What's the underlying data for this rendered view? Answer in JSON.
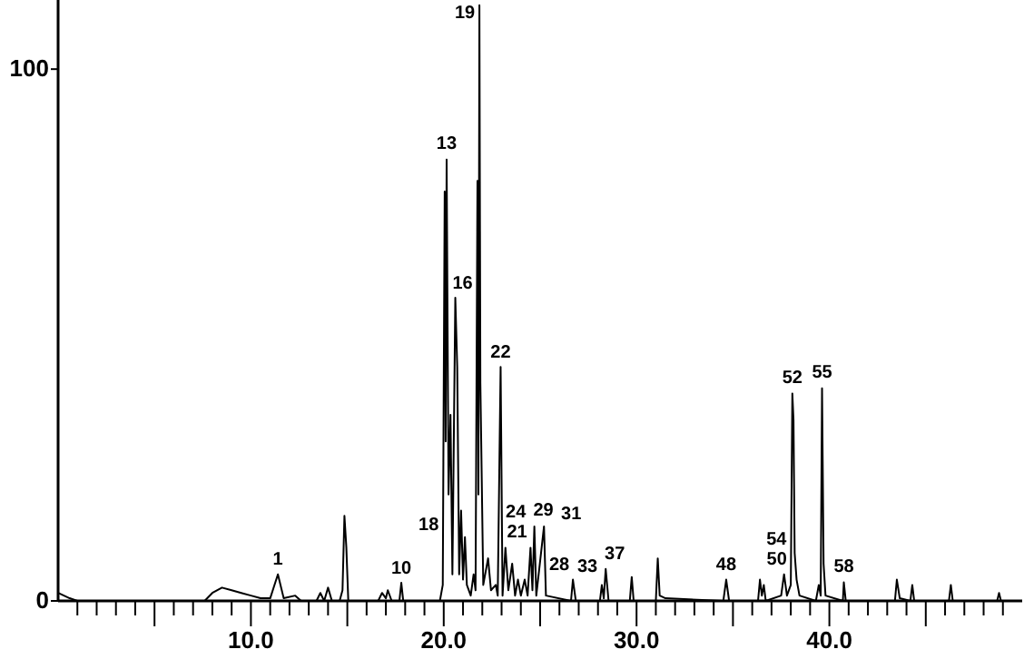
{
  "chart_data": {
    "type": "line",
    "xlim": [
      0,
      50
    ],
    "ylim": [
      0,
      113
    ],
    "xticks": [
      {
        "value": 1,
        "label": null
      },
      {
        "value": 2,
        "label": null
      },
      {
        "value": 3,
        "label": null
      },
      {
        "value": 4,
        "label": null
      },
      {
        "value": 5,
        "label": null
      },
      {
        "value": 6,
        "label": null
      },
      {
        "value": 7,
        "label": null
      },
      {
        "value": 8,
        "label": null
      },
      {
        "value": 9,
        "label": null
      },
      {
        "value": 10,
        "label": "10.0"
      },
      {
        "value": 11,
        "label": null
      },
      {
        "value": 12,
        "label": null
      },
      {
        "value": 13,
        "label": null
      },
      {
        "value": 14,
        "label": null
      },
      {
        "value": 15,
        "label": null
      },
      {
        "value": 16,
        "label": null
      },
      {
        "value": 17,
        "label": null
      },
      {
        "value": 18,
        "label": null
      },
      {
        "value": 19,
        "label": null
      },
      {
        "value": 20,
        "label": "20.0"
      },
      {
        "value": 21,
        "label": null
      },
      {
        "value": 22,
        "label": null
      },
      {
        "value": 23,
        "label": null
      },
      {
        "value": 24,
        "label": null
      },
      {
        "value": 25,
        "label": null
      },
      {
        "value": 26,
        "label": null
      },
      {
        "value": 27,
        "label": null
      },
      {
        "value": 28,
        "label": null
      },
      {
        "value": 29,
        "label": null
      },
      {
        "value": 30,
        "label": "30.0"
      },
      {
        "value": 31,
        "label": null
      },
      {
        "value": 32,
        "label": null
      },
      {
        "value": 33,
        "label": null
      },
      {
        "value": 34,
        "label": null
      },
      {
        "value": 35,
        "label": null
      },
      {
        "value": 36,
        "label": null
      },
      {
        "value": 37,
        "label": null
      },
      {
        "value": 38,
        "label": null
      },
      {
        "value": 39,
        "label": null
      },
      {
        "value": 40,
        "label": "40.0"
      },
      {
        "value": 41,
        "label": null
      },
      {
        "value": 42,
        "label": null
      },
      {
        "value": 43,
        "label": null
      },
      {
        "value": 44,
        "label": null
      },
      {
        "value": 45,
        "label": null
      },
      {
        "value": 46,
        "label": null
      },
      {
        "value": 47,
        "label": null
      },
      {
        "value": 48,
        "label": null
      },
      {
        "value": 49,
        "label": null
      }
    ],
    "yticks": [
      0,
      100
    ],
    "series": [
      {
        "color": "#000000",
        "x": [
          0,
          0.3,
          0.6,
          1,
          7.6,
          8,
          8.5,
          9,
          9.5,
          10,
          10.5,
          11,
          11.4,
          11.7,
          12.3,
          12.6,
          13.4,
          13.6,
          13.8,
          14.0,
          14.2,
          14.6,
          14.75,
          14.85,
          14.95,
          15.05,
          16.6,
          16.8,
          17.0,
          17.1,
          17.3,
          17.7,
          17.8,
          17.9,
          19.8,
          19.95,
          20.05,
          20.1,
          20.15,
          20.25,
          20.35,
          20.45,
          20.6,
          20.7,
          20.8,
          20.9,
          21.0,
          21.1,
          21.2,
          21.4,
          21.55,
          21.65,
          21.75,
          21.8,
          21.85,
          21.9,
          22.05,
          22.3,
          22.45,
          22.7,
          22.8,
          22.95,
          23.05,
          23.2,
          23.35,
          23.55,
          23.7,
          23.85,
          24.0,
          24.2,
          24.35,
          24.5,
          24.6,
          24.7,
          24.8,
          25.2,
          25.3,
          26.6,
          26.7,
          26.85,
          28.1,
          28.2,
          28.3,
          28.4,
          28.55,
          29.65,
          29.75,
          29.85,
          31.0,
          31.1,
          31.2,
          31.5,
          34.5,
          34.65,
          34.8,
          36.3,
          36.4,
          36.5,
          36.6,
          36.7,
          37.5,
          37.65,
          37.8,
          38.0,
          38.08,
          38.14,
          38.2,
          38.3,
          38.45,
          39.3,
          39.45,
          39.55,
          39.62,
          39.7,
          39.8,
          40.7,
          40.75,
          40.85,
          43.4,
          43.5,
          43.65,
          44.2,
          44.3,
          44.4,
          46.2,
          46.3,
          46.4,
          48.7,
          48.8,
          48.9,
          49.8
        ],
        "values": [
          1.5,
          1,
          0.5,
          0,
          0,
          1.5,
          2.5,
          2,
          1.5,
          1,
          0.5,
          0.5,
          5,
          0.5,
          1,
          0,
          0,
          1.5,
          0,
          2.5,
          0,
          0,
          2,
          16,
          10,
          0,
          0,
          1.5,
          0.5,
          2,
          0,
          0,
          3.4,
          0,
          0,
          3,
          77,
          30,
          83,
          20,
          35,
          5,
          57,
          44,
          5,
          17,
          4,
          12,
          3,
          1,
          5,
          2,
          79,
          20,
          112,
          41,
          3,
          8,
          2,
          3,
          1,
          44,
          1,
          10,
          2,
          7,
          1,
          4,
          1,
          4,
          1,
          10,
          2,
          14,
          1,
          14,
          1,
          0,
          4,
          0,
          0,
          3,
          0.5,
          6,
          0,
          0,
          4.5,
          0,
          0,
          8,
          1,
          0.5,
          0,
          4,
          0,
          0,
          4,
          1,
          3,
          0,
          1,
          5,
          1,
          3,
          39,
          34,
          9,
          4,
          1,
          0,
          3,
          1,
          40,
          7,
          1,
          0,
          3.5,
          0,
          0,
          4,
          0.5,
          0,
          3,
          0,
          0,
          3,
          0,
          0,
          1.5,
          0,
          0
        ]
      }
    ],
    "annotations": [
      {
        "text": "1",
        "x": 11.4,
        "y": 5
      },
      {
        "text": "10",
        "x": 17.8,
        "y": 3.4
      },
      {
        "text": "13",
        "x": 20.15,
        "y": 83
      },
      {
        "text": "16",
        "x": 20.6,
        "y": 57
      },
      {
        "text": "18",
        "x": 21.1,
        "y": 12
      },
      {
        "text": "19",
        "x": 21.85,
        "y": 112
      },
      {
        "text": "21",
        "x": 22.3,
        "y": 8
      },
      {
        "text": "22",
        "x": 22.95,
        "y": 44
      },
      {
        "text": "24",
        "x": 23.55,
        "y": 7
      },
      {
        "text": "28",
        "x": 24.2,
        "y": 4
      },
      {
        "text": "29",
        "x": 24.7,
        "y": 14
      },
      {
        "text": "31",
        "x": 25.2,
        "y": 14
      },
      {
        "text": "33",
        "x": 26.7,
        "y": 4
      },
      {
        "text": "37",
        "x": 28.4,
        "y": 6
      },
      {
        "text": "48",
        "x": 34.65,
        "y": 4
      },
      {
        "text": "50",
        "x": 37.65,
        "y": 5
      },
      {
        "text": "52",
        "x": 38.08,
        "y": 39
      },
      {
        "text": "54",
        "x": 38.2,
        "y": 9
      },
      {
        "text": "55",
        "x": 39.62,
        "y": 40
      },
      {
        "text": "58",
        "x": 40.75,
        "y": 3.5
      }
    ]
  }
}
